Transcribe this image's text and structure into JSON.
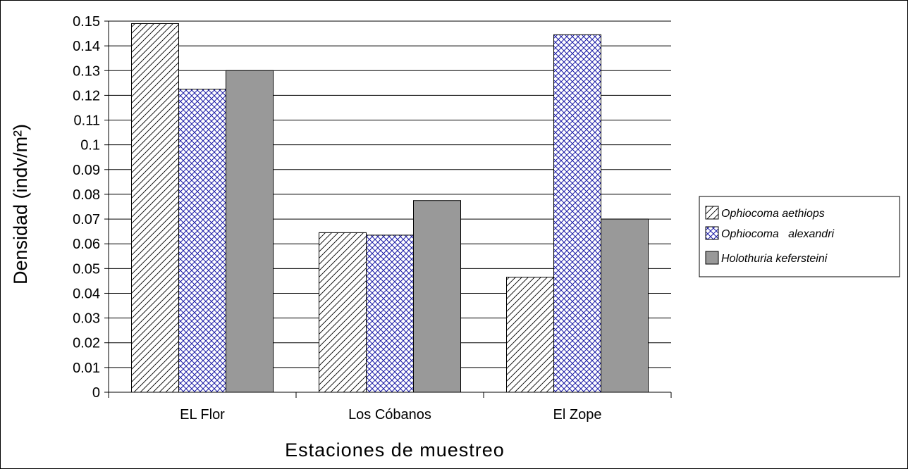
{
  "chart_data": {
    "type": "bar",
    "categories": [
      "EL Flor",
      "Los Cóbanos",
      "El Zope"
    ],
    "series": [
      {
        "name": "Ophiocoma aethiops",
        "values": [
          0.149,
          0.0645,
          0.0465
        ],
        "pattern": "diagonal-hatch",
        "color": "#000000"
      },
      {
        "name": "Ophiocoma   alexandri",
        "values": [
          0.1225,
          0.0635,
          0.1445
        ],
        "pattern": "crosshatch",
        "color": "#1a1aa6"
      },
      {
        "name": "Holothuria kefersteini",
        "values": [
          0.13,
          0.0775,
          0.07
        ],
        "pattern": "solid",
        "color": "#999999"
      }
    ],
    "title": "",
    "xlabel": "Estaciones de muestreo",
    "ylabel": "Densidad (indv/m²)",
    "ylim": [
      0,
      0.15
    ],
    "yticks": [
      "0",
      "0.01",
      "0.02",
      "0.03",
      "0.04",
      "0.05",
      "0.06",
      "0.07",
      "0.08",
      "0.09",
      "0.1",
      "0.11",
      "0.12",
      "0.13",
      "0.14",
      "0.15"
    ],
    "grid": true,
    "legend_position": "right"
  }
}
